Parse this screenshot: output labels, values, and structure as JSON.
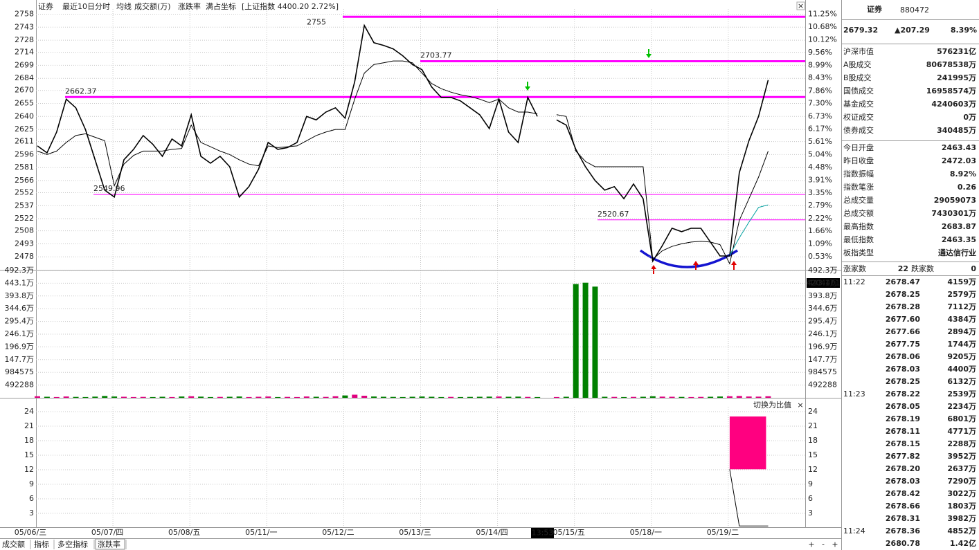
{
  "header": {
    "name": "证券",
    "items": [
      "最近10日分时",
      "均线",
      "成交额(万)",
      "涨跌率",
      "满占坐标"
    ],
    "index_info": "[上证指数 4400.20 2.72%]",
    "close": "×"
  },
  "chart_data": [
    {
      "type": "line",
      "cursor_time": "13:53",
      "categories": [
        "05/06/三",
        null,
        null,
        null,
        null,
        null,
        null,
        null,
        "05/07/四",
        null,
        null,
        null,
        null,
        null,
        null,
        null,
        "05/08/五",
        null,
        null,
        null,
        null,
        null,
        null,
        null,
        "05/11/一",
        null,
        null,
        null,
        null,
        null,
        null,
        null,
        "05/12/二",
        null,
        null,
        null,
        null,
        null,
        null,
        null,
        "05/13/三",
        null,
        null,
        null,
        null,
        null,
        null,
        null,
        "05/14/四",
        null,
        null,
        null,
        null,
        null,
        null,
        null,
        "05/15/五",
        null,
        null,
        null,
        null,
        null,
        null,
        null,
        "05/18/一",
        null,
        null,
        null,
        null,
        null,
        null,
        null,
        "05/19/二",
        null,
        null,
        null,
        null,
        null,
        null,
        null
      ],
      "series": [
        {
          "color": "#000000",
          "width": 1.6,
          "values": [
            2606,
            2598,
            2622,
            2660,
            2650,
            2625,
            2590,
            2555,
            2547,
            2590,
            2602,
            2618,
            2608,
            2594,
            2614,
            2606,
            2642,
            2594,
            2586,
            2594,
            2582,
            2547,
            2559,
            2579,
            2610,
            2602,
            2604,
            2610,
            2640,
            2636,
            2645,
            2650,
            2638,
            2680,
            2745,
            2725,
            2722,
            2718,
            2710,
            2700,
            2694,
            2674,
            2662,
            2662,
            2658,
            2650,
            2642,
            2626,
            2660,
            2622,
            2610,
            2662,
            2640,
            null,
            2636,
            2630,
            2602,
            2582,
            2566,
            2555,
            2559,
            2545,
            2562,
            2545,
            2473,
            2491,
            2511,
            2507,
            2511,
            2511,
            2495,
            2479,
            2479,
            2575,
            2612,
            2640,
            2682,
            null,
            null,
            null
          ]
        },
        {
          "color": "#000000",
          "width": 1,
          "values": [
            2600,
            2596,
            2600,
            2610,
            2618,
            2620,
            2616,
            2612,
            2560,
            2585,
            2595,
            2600,
            2600,
            2600,
            2602,
            2603,
            2630,
            2610,
            2605,
            2600,
            2596,
            2590,
            2585,
            2583,
            2606,
            2604,
            2605,
            2606,
            2612,
            2618,
            2622,
            2625,
            2625,
            2660,
            2690,
            2700,
            2702,
            2704,
            2704,
            2702,
            2690,
            2678,
            2672,
            2668,
            2665,
            2663,
            2660,
            2656,
            2660,
            2650,
            2645,
            2645,
            2643,
            null,
            2642,
            2640,
            2600,
            2588,
            2582,
            2582,
            2582,
            2582,
            2582,
            2582,
            2475,
            2485,
            2490,
            2493,
            2495,
            2496,
            2495,
            2492,
            2470,
            2520,
            2545,
            2570,
            2600,
            null,
            null,
            null
          ]
        },
        {
          "color": "#00a0a0",
          "width": 1,
          "values": [
            null,
            null,
            null,
            null,
            null,
            null,
            null,
            null,
            null,
            null,
            null,
            null,
            null,
            null,
            null,
            null,
            null,
            null,
            null,
            null,
            null,
            null,
            null,
            null,
            null,
            null,
            null,
            null,
            null,
            null,
            null,
            null,
            null,
            null,
            null,
            null,
            null,
            null,
            null,
            null,
            null,
            null,
            null,
            null,
            null,
            null,
            null,
            null,
            null,
            null,
            null,
            null,
            null,
            null,
            null,
            null,
            null,
            null,
            null,
            null,
            null,
            null,
            null,
            null,
            null,
            null,
            null,
            null,
            null,
            null,
            null,
            null,
            2480,
            2500,
            2518,
            2535,
            2538,
            null,
            null,
            null
          ]
        }
      ],
      "hlines": [
        {
          "value": 2755,
          "color": "#ff00ff"
        },
        {
          "value": 2703.77,
          "color": "#ff00ff"
        },
        {
          "value": 2662.37,
          "color": "#ff00ff"
        },
        {
          "value": 2549.96,
          "color": "#ff00ff"
        },
        {
          "value": 2520.67,
          "color": "#ff00ff"
        }
      ],
      "ylim": [
        2463,
        2764
      ],
      "yticks": [
        2758,
        2743,
        2728,
        2714,
        2699,
        2684,
        2670,
        2655,
        2640,
        2625,
        2611,
        2596,
        2581,
        2566,
        2552,
        2537,
        2522,
        2508,
        2493,
        2478
      ],
      "y2lim": [
        -0.05,
        11.48
      ],
      "y2ticks": [
        {
          "value": 11.25,
          "label": "11.25%"
        },
        {
          "value": 10.68,
          "label": "10.68%"
        },
        {
          "value": 10.12,
          "label": "10.12%"
        },
        {
          "value": 9.56,
          "label": "9.56%"
        },
        {
          "value": 8.99,
          "label": "8.99%"
        },
        {
          "value": 8.43,
          "label": "8.43%"
        },
        {
          "value": 7.86,
          "label": "7.86%"
        },
        {
          "value": 7.3,
          "label": "7.30%"
        },
        {
          "value": 6.73,
          "label": "6.73%"
        },
        {
          "value": 6.17,
          "label": "6.17%"
        },
        {
          "value": 5.61,
          "label": "5.61%"
        },
        {
          "value": 5.04,
          "label": "5.04%"
        },
        {
          "value": 4.48,
          "label": "4.48%"
        },
        {
          "value": 3.91,
          "label": "3.91%"
        },
        {
          "value": 3.35,
          "label": "3.35%"
        },
        {
          "value": 2.79,
          "label": "2.79%"
        },
        {
          "value": 2.22,
          "label": "2.22%"
        },
        {
          "value": 1.66,
          "label": "1.66%"
        },
        {
          "value": 1.09,
          "label": "1.09%"
        },
        {
          "value": 0.53,
          "label": "0.53%"
        }
      ],
      "grid": true
    },
    {
      "type": "bar",
      "up_color": "#e0007f",
      "down_color": "#008000",
      "cursor_value": 4204401,
      "values": [
        60000,
        40000,
        30000,
        50000,
        35000,
        30000,
        45000,
        70000,
        50000,
        40000,
        30000,
        35000,
        30000,
        40000,
        30000,
        50000,
        60000,
        45000,
        30000,
        35000,
        40000,
        50000,
        30000,
        40000,
        50000,
        30000,
        35000,
        30000,
        50000,
        40000,
        35000,
        60000,
        90000,
        120000,
        80000,
        50000,
        40000,
        35000,
        30000,
        40000,
        50000,
        40000,
        30000,
        35000,
        30000,
        35000,
        40000,
        45000,
        50000,
        40000,
        45000,
        35000,
        30000,
        null,
        30000,
        40000,
        4400000,
        4450000,
        4300000,
        40000,
        35000,
        30000,
        35000,
        40000,
        60000,
        45000,
        40000,
        35000,
        30000,
        35000,
        40000,
        50000,
        60000,
        70000,
        50000,
        45000,
        60000,
        null,
        null,
        null
      ],
      "ylim": [
        0,
        4922880
      ],
      "yticks": [
        492288,
        984575,
        {
          "value": 1476864,
          "label": "147.7万"
        },
        {
          "value": 1969152,
          "label": "196.9万"
        },
        {
          "value": 2461440,
          "label": "246.1万"
        },
        {
          "value": 2953728,
          "label": "295.4万"
        },
        {
          "value": 3446016,
          "label": "344.6万"
        },
        {
          "value": 3938304,
          "label": "393.8万"
        },
        {
          "value": 4430592,
          "label": "443.1万"
        },
        {
          "value": 4922880,
          "label": "492.3万"
        }
      ],
      "grid": true
    },
    {
      "type": "line",
      "switch_label": "切换为比值",
      "close": "×",
      "series": [
        {
          "color": "#000000",
          "width": 1,
          "values": [
            null,
            null,
            null,
            null,
            null,
            null,
            null,
            null,
            null,
            null,
            null,
            null,
            null,
            null,
            null,
            null,
            null,
            null,
            null,
            null,
            null,
            null,
            null,
            null,
            null,
            null,
            null,
            null,
            null,
            null,
            null,
            null,
            null,
            null,
            null,
            null,
            null,
            null,
            null,
            null,
            null,
            null,
            null,
            null,
            null,
            null,
            null,
            null,
            null,
            null,
            null,
            null,
            null,
            null,
            null,
            null,
            null,
            null,
            null,
            null,
            null,
            null,
            null,
            null,
            null,
            null,
            null,
            null,
            null,
            null,
            null,
            null,
            12.1,
            0.4,
            0.4,
            0.4,
            0.4,
            null,
            null,
            null
          ]
        }
      ],
      "range": {
        "low": 12.1,
        "high": 23,
        "color": "#ff0080"
      },
      "ylim": [
        0,
        25
      ],
      "yticks": [
        24,
        21,
        18,
        15,
        12,
        9,
        6,
        3
      ],
      "grid": true
    }
  ],
  "tabs": [
    "成交额",
    "指标",
    "多空指标",
    "涨跌率"
  ],
  "controls": [
    "+",
    "-",
    "+"
  ],
  "quote": {
    "name": "证券",
    "code": "880472",
    "price": "2679.32",
    "change": "▲207.29",
    "pct": "8.39%"
  },
  "stats": [
    {
      "label": "沪深市值",
      "value": "576231亿",
      "color": "#333333"
    },
    {
      "label": "A股成交",
      "value": "80678538万",
      "color": "#000000"
    },
    {
      "label": "B股成交",
      "value": "241995万",
      "color": "#000000"
    },
    {
      "label": "国债成交",
      "value": "16958574万",
      "color": "#000000"
    },
    {
      "label": "基金成交",
      "value": "4240603万",
      "color": "#000000"
    },
    {
      "label": "权证成交",
      "value": "0万",
      "color": "#000000"
    },
    {
      "label": "债券成交",
      "value": "340485万",
      "color": "#000000"
    },
    {
      "label": "今日开盘",
      "value": "2463.43",
      "color": "#008000"
    },
    {
      "label": "昨日收盘",
      "value": "2472.03",
      "color": "#000000"
    },
    {
      "label": "指数振幅",
      "value": "8.92%",
      "color": "#e0006f"
    },
    {
      "label": "指数笔涨",
      "value": "0.26",
      "color": "#e0006f"
    },
    {
      "label": "总成交量",
      "value": "29059073",
      "color": "#000000"
    },
    {
      "label": "总成交额",
      "value": "7430301万",
      "color": "#000000"
    },
    {
      "label": "最高指数",
      "value": "2683.87",
      "color": "#e0006f"
    },
    {
      "label": "最低指数",
      "value": "2463.35",
      "color": "#008000"
    },
    {
      "label": "板指类型",
      "value": "通达信行业",
      "color": "#000000"
    }
  ],
  "breadth": {
    "up_label": "涨家数",
    "up": "22",
    "down_label": "跌家数",
    "down": "0"
  },
  "ticks": [
    {
      "time": "11:22",
      "rows": [
        {
          "price": "2678.47",
          "volume": "4159万"
        },
        {
          "price": "2678.25",
          "volume": "2579万"
        },
        {
          "price": "2678.28",
          "volume": "7112万"
        },
        {
          "price": "2677.60",
          "volume": "4384万"
        },
        {
          "price": "2677.66",
          "volume": "2894万"
        },
        {
          "price": "2677.75",
          "volume": "1744万"
        },
        {
          "price": "2678.06",
          "volume": "9205万"
        },
        {
          "price": "2678.03",
          "volume": "4400万"
        },
        {
          "price": "2678.25",
          "volume": "6132万"
        }
      ]
    },
    {
      "time": "11:23",
      "rows": [
        {
          "price": "2678.22",
          "volume": "2539万"
        },
        {
          "price": "2678.05",
          "volume": "2234万"
        },
        {
          "price": "2678.19",
          "volume": "6801万"
        },
        {
          "price": "2678.11",
          "volume": "4771万"
        },
        {
          "price": "2678.15",
          "volume": "2288万"
        },
        {
          "price": "2677.82",
          "volume": "3952万"
        },
        {
          "price": "2678.20",
          "volume": "2637万"
        },
        {
          "price": "2678.03",
          "volume": "7290万"
        },
        {
          "price": "2678.42",
          "volume": "3022万"
        },
        {
          "price": "2678.66",
          "volume": "1803万"
        },
        {
          "price": "2678.31",
          "volume": "3982万"
        }
      ]
    },
    {
      "time": "11:24",
      "rows": [
        {
          "price": "2678.36",
          "volume": "4852万"
        },
        {
          "price": "2680.78",
          "volume": "1.42亿"
        }
      ]
    }
  ]
}
